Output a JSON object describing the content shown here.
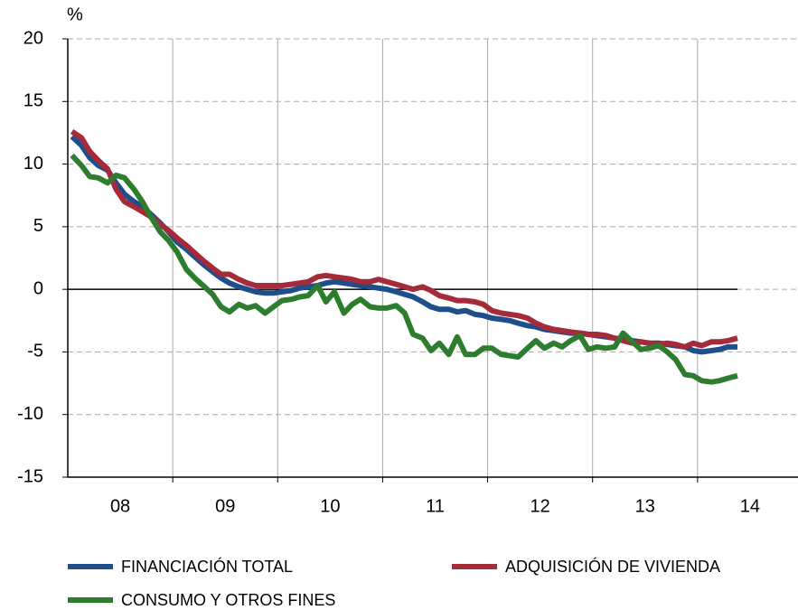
{
  "chart_data": {
    "type": "line",
    "y_label": "%",
    "x": [
      2008.04,
      2008.13,
      2008.21,
      2008.29,
      2008.38,
      2008.46,
      2008.54,
      2008.63,
      2008.71,
      2008.79,
      2008.88,
      2008.96,
      2009.04,
      2009.13,
      2009.21,
      2009.29,
      2009.38,
      2009.46,
      2009.54,
      2009.63,
      2009.71,
      2009.79,
      2009.88,
      2009.96,
      2010.04,
      2010.13,
      2010.21,
      2010.29,
      2010.38,
      2010.46,
      2010.54,
      2010.63,
      2010.71,
      2010.79,
      2010.88,
      2010.96,
      2011.04,
      2011.13,
      2011.21,
      2011.29,
      2011.38,
      2011.46,
      2011.54,
      2011.63,
      2011.71,
      2011.79,
      2011.88,
      2011.96,
      2012.04,
      2012.13,
      2012.21,
      2012.29,
      2012.38,
      2012.46,
      2012.54,
      2012.63,
      2012.71,
      2012.79,
      2012.88,
      2012.96,
      2013.04,
      2013.13,
      2013.21,
      2013.29,
      2013.38,
      2013.46,
      2013.54,
      2013.63,
      2013.71,
      2013.79,
      2013.88,
      2013.96,
      2014.04,
      2014.13,
      2014.21,
      2014.29,
      2014.38
    ],
    "series": [
      {
        "name": "FINANCIACIÓN TOTAL",
        "color": "#1f4e8c",
        "values": [
          12.2,
          11.5,
          10.5,
          9.9,
          9.5,
          8.5,
          7.6,
          7.0,
          6.6,
          6.0,
          5.3,
          4.6,
          3.8,
          3.2,
          2.6,
          2.0,
          1.4,
          0.9,
          0.5,
          0.2,
          0.0,
          -0.2,
          -0.3,
          -0.3,
          -0.2,
          -0.1,
          0.1,
          0.2,
          0.3,
          0.5,
          0.6,
          0.5,
          0.4,
          0.3,
          0.2,
          0.1,
          0.0,
          -0.2,
          -0.4,
          -0.6,
          -1.0,
          -1.4,
          -1.6,
          -1.6,
          -1.8,
          -1.7,
          -2.0,
          -2.1,
          -2.3,
          -2.4,
          -2.5,
          -2.7,
          -2.9,
          -3.0,
          -3.2,
          -3.3,
          -3.4,
          -3.5,
          -3.5,
          -3.6,
          -3.7,
          -3.8,
          -3.9,
          -4.0,
          -4.1,
          -4.2,
          -4.3,
          -4.3,
          -4.4,
          -4.5,
          -4.6,
          -4.9,
          -5.0,
          -4.9,
          -4.8,
          -4.6,
          -4.6
        ]
      },
      {
        "name": "ADQUISICIÓN  DE VIVIENDA",
        "color": "#a52a3a",
        "values": [
          12.6,
          12.1,
          11.0,
          10.3,
          9.6,
          8.0,
          7.0,
          6.6,
          6.2,
          5.8,
          5.2,
          4.7,
          4.1,
          3.5,
          2.9,
          2.3,
          1.7,
          1.2,
          1.2,
          0.8,
          0.5,
          0.3,
          0.3,
          0.3,
          0.3,
          0.4,
          0.5,
          0.6,
          1.0,
          1.1,
          1.0,
          0.9,
          0.8,
          0.6,
          0.6,
          0.8,
          0.6,
          0.4,
          0.2,
          0.0,
          0.2,
          -0.1,
          -0.5,
          -0.7,
          -0.9,
          -0.9,
          -1.0,
          -1.2,
          -1.7,
          -1.9,
          -2.0,
          -2.1,
          -2.3,
          -2.7,
          -3.0,
          -3.2,
          -3.3,
          -3.4,
          -3.5,
          -3.6,
          -3.6,
          -3.7,
          -3.9,
          -4.1,
          -4.3,
          -4.2,
          -4.3,
          -4.4,
          -4.3,
          -4.4,
          -4.6,
          -4.3,
          -4.5,
          -4.2,
          -4.2,
          -4.1,
          -3.9
        ]
      },
      {
        "name": "CONSUMO  Y OTROS FINES",
        "color": "#2e7d2e",
        "values": [
          10.7,
          9.9,
          9.0,
          8.9,
          8.5,
          9.1,
          8.9,
          8.0,
          7.0,
          5.8,
          4.6,
          3.9,
          3.0,
          1.6,
          0.9,
          0.3,
          -0.4,
          -1.4,
          -1.8,
          -1.2,
          -1.5,
          -1.3,
          -1.9,
          -1.4,
          -0.9,
          -0.8,
          -0.6,
          -0.5,
          0.3,
          -1.0,
          -0.2,
          -1.9,
          -1.2,
          -0.8,
          -1.4,
          -1.5,
          -1.5,
          -1.3,
          -1.9,
          -3.6,
          -3.9,
          -4.9,
          -4.3,
          -5.2,
          -3.8,
          -5.2,
          -5.2,
          -4.7,
          -4.7,
          -5.2,
          -5.3,
          -5.4,
          -4.7,
          -4.1,
          -4.7,
          -4.3,
          -4.6,
          -4.1,
          -3.7,
          -4.8,
          -4.6,
          -4.7,
          -4.6,
          -3.5,
          -4.2,
          -4.8,
          -4.7,
          -4.5,
          -5.0,
          -5.6,
          -6.8,
          -6.9,
          -7.3,
          -7.4,
          -7.3,
          -7.1,
          -6.9
        ]
      }
    ],
    "xlim": [
      2008,
      2015
    ],
    "xticks": [
      {
        "value": 2008.5,
        "label": "08"
      },
      {
        "value": 2009.5,
        "label": "09"
      },
      {
        "value": 2010.5,
        "label": "10"
      },
      {
        "value": 2011.5,
        "label": "11"
      },
      {
        "value": 2012.5,
        "label": "12"
      },
      {
        "value": 2013.5,
        "label": "13"
      },
      {
        "value": 2014.5,
        "label": "14"
      }
    ],
    "xgrid": [
      2009,
      2010,
      2011,
      2012,
      2013,
      2014
    ],
    "ylim": [
      -15,
      20
    ],
    "yticks": [
      -15,
      -10,
      -5,
      0,
      5,
      10,
      15,
      20
    ],
    "baseline": 0,
    "grid": true
  }
}
